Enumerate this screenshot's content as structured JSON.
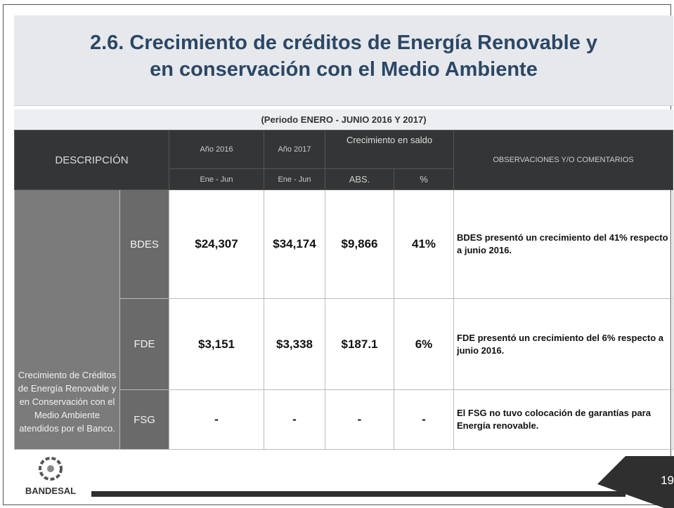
{
  "header": {
    "title_lines": [
      "2.6.  Crecimiento de créditos de Energía Renovable y",
      "en conservación con el Medio Ambiente"
    ],
    "subtitle": "(Periodo ENERO - JUNIO 2016 Y 2017)"
  },
  "table": {
    "head": {
      "description": "DESCRIPCIÓN",
      "year_2016": "Año 2016",
      "year_2017": "Año 2017",
      "growth": "Crecimiento en saldo",
      "observations": "OBSERVACIONES Y/O COMENTARIOS",
      "period_2016": "Ene - Jun",
      "period_2017": "Ene - Jun",
      "abs": "ABS.",
      "pct": "%"
    },
    "group_label": "Crecimiento de Créditos de Energía Renovable y en Conservación con el Medio Ambiente atendidos por el Banco.",
    "rows": [
      [
        "BDES",
        "$24,307",
        "$34,174",
        "$9,866",
        "41%",
        "BDES presentó un crecimiento del 41% respecto a junio 2016."
      ],
      [
        "FDE",
        "$3,151",
        "$3,338",
        "$187.1",
        "6%",
        "FDE presentó un crecimiento del 6% respecto a junio 2016."
      ],
      [
        "FSG",
        "-",
        "-",
        "-",
        "-",
        "El FSG no tuvo colocación de garantías para Energía renovable."
      ]
    ]
  },
  "footer": {
    "logo": "BANDESAL",
    "page": "19"
  }
}
